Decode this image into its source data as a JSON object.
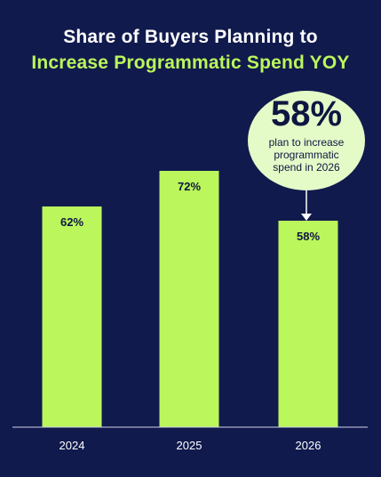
{
  "colors": {
    "background": "#111a4d",
    "bar": "#baf65c",
    "title_line1": "#ffffff",
    "title_line2": "#baf65c",
    "callout_bg": "#e4fbc8",
    "axis_text": "#ffffff",
    "bar_label": "#0f1640"
  },
  "title": {
    "line1": "Share of Buyers Planning to",
    "line2": "Increase Programmatic Spend YOY"
  },
  "callout": {
    "big": "58%",
    "line1": "plan to increase",
    "line2": "programmatic",
    "line3": "spend in 2026"
  },
  "chart_data": {
    "type": "bar",
    "categories": [
      "2024",
      "2025",
      "2026"
    ],
    "values": [
      62,
      72,
      58
    ],
    "value_labels": [
      "62%",
      "72%",
      "58%"
    ],
    "xlabel": "",
    "ylabel": "",
    "ylim": [
      0,
      100
    ],
    "grid": false,
    "legend": "none"
  }
}
